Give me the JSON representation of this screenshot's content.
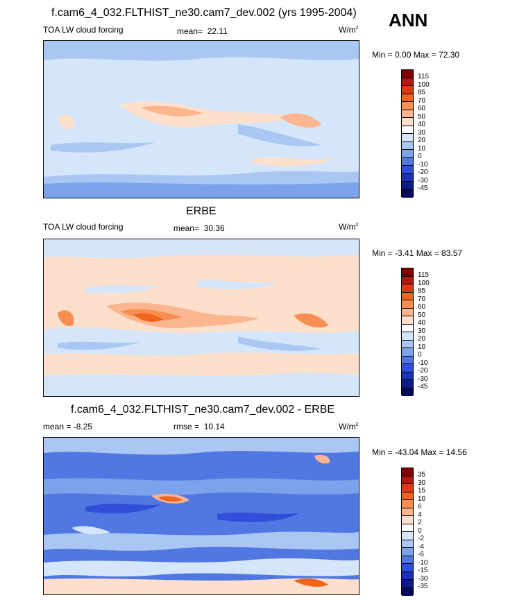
{
  "ann_label": "ANN",
  "units": "W/m",
  "units_sup": "2",
  "panel1": {
    "title": "f.cam6_4_032.FLTHIST_ne30.cam7_dev.002 (yrs 1995-2004)",
    "left_label": "TOA LW cloud forcing",
    "stat_label": "mean=",
    "stat_value": "22.11",
    "minmax": "Min =   0.00 Max =  72.30",
    "colorbar_labels": [
      "115",
      "100",
      "85",
      "70",
      "60",
      "50",
      "40",
      "30",
      "20",
      "10",
      "0",
      "-10",
      "-20",
      "-30",
      "-45"
    ]
  },
  "panel2": {
    "title": "ERBE",
    "left_label": "TOA LW cloud forcing",
    "stat_label": "mean=",
    "stat_value": "30.36",
    "minmax": "Min =  -3.41 Max =  83.57",
    "colorbar_labels": [
      "115",
      "100",
      "85",
      "70",
      "60",
      "50",
      "40",
      "30",
      "20",
      "10",
      "0",
      "-10",
      "-20",
      "-30",
      "-45"
    ]
  },
  "panel3": {
    "title": "f.cam6_4_032.FLTHIST_ne30.cam7_dev.002 - ERBE",
    "left_label": "mean =  -8.25",
    "stat_label": "rmse =",
    "stat_value": "10.14",
    "minmax": "Min = -43.04 Max =  14.56",
    "colorbar_labels": [
      "35",
      "30",
      "15",
      "10",
      "6",
      "4",
      "2",
      "0",
      "-2",
      "-4",
      "-6",
      "-10",
      "-15",
      "-30",
      "-35"
    ]
  },
  "colors": {
    "bar": [
      "#7f0000",
      "#b2180d",
      "#dc3a14",
      "#f0651e",
      "#f88e52",
      "#fbb58f",
      "#fde0cb",
      "#ffffff",
      "#d6e6fa",
      "#a9c7f2",
      "#7ba2ea",
      "#5077e2",
      "#2f4fd8",
      "#1a31b8",
      "#0c1a8a",
      "#020a5a"
    ]
  }
}
